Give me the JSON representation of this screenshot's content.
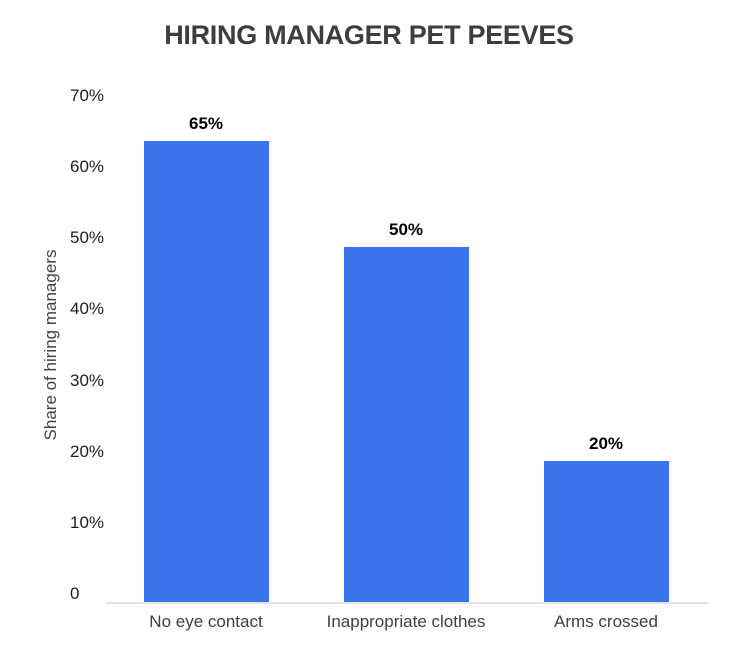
{
  "chart_data": {
    "type": "bar",
    "title": "HIRING MANAGER PET PEEVES",
    "categories": [
      "No eye contact",
      "Inappropriate clothes",
      "Arms crossed"
    ],
    "values": [
      65,
      50,
      20
    ],
    "value_labels": [
      "65%",
      "50%",
      "20%"
    ],
    "xlabel": "",
    "ylabel": "Share of hiring managers",
    "ylim": [
      0,
      70
    ],
    "y_ticks": [
      0,
      10,
      20,
      30,
      40,
      50,
      60,
      70
    ],
    "y_tick_labels": [
      "0",
      "10%",
      "20%",
      "30%",
      "40%",
      "50%",
      "60%",
      "70%"
    ],
    "grid": false,
    "legend": "none"
  },
  "colors": {
    "bar": "#3a74ea",
    "title_text": "#3d3d3d",
    "tick_text": "#1e1e1e",
    "category_text": "#3c4043",
    "value_text": "#000000",
    "axis_line": "#e3e3e3",
    "background": "#ffffff"
  }
}
